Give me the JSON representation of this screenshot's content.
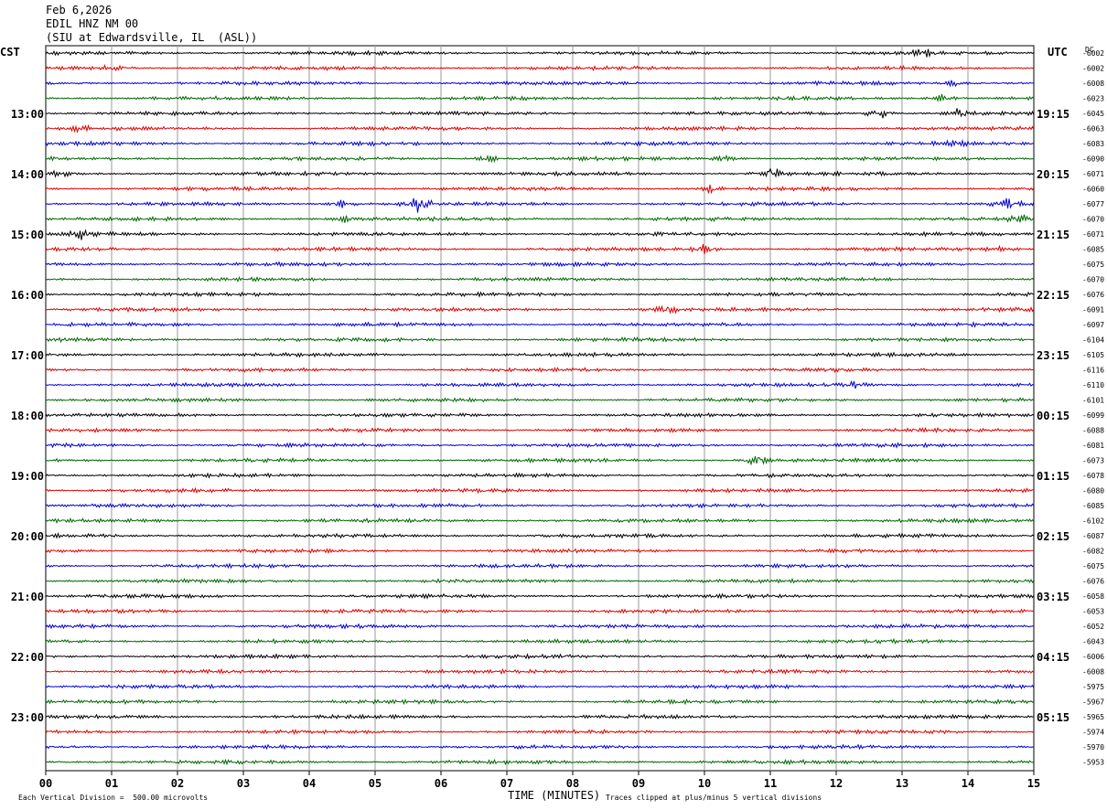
{
  "header": {
    "date": "Feb 6,2026",
    "channel": "EDIL HNZ NM 00",
    "station": "(SIU at Edwardsville, IL  (ASL))"
  },
  "left_label": "CST",
  "right_label": "UTC",
  "dc_label": "DC",
  "footer": {
    "scale_note": "Each Vertical Division =  500.00 microvolts",
    "clip_note": "Traces clipped at plus/minus 5 vertical divisions"
  },
  "colors": {
    "cycle": [
      "#000000",
      "#dd0000",
      "#0000cc",
      "#006600"
    ],
    "grid": "#9a9a9a"
  },
  "chart_data": {
    "type": "line",
    "subtype": "helicorder",
    "xlabel": "TIME (MINUTES)",
    "xlim": [
      0,
      15
    ],
    "x_ticks": [
      "00",
      "01",
      "02",
      "03",
      "04",
      "05",
      "06",
      "07",
      "08",
      "09",
      "10",
      "11",
      "12",
      "13",
      "14",
      "15"
    ],
    "left_time_labels": [
      "13:00",
      "14:00",
      "15:00",
      "16:00",
      "17:00",
      "18:00",
      "19:00",
      "20:00",
      "21:00",
      "22:00",
      "23:00"
    ],
    "right_time_labels": [
      "19:15",
      "20:15",
      "21:15",
      "22:15",
      "23:15",
      "00:15",
      "01:15",
      "02:15",
      "03:15",
      "04:15",
      "05:15"
    ],
    "dc_offsets": [
      "-6002",
      "-6002",
      "-6008",
      "-6023",
      "-6045",
      "-6063",
      "-6083",
      "-6090",
      "-6071",
      "-6060",
      "-6077",
      "-6070",
      "-6071",
      "-6085",
      "-6075",
      "-6070",
      "-6076",
      "-6091",
      "-6097",
      "-6104",
      "-6105",
      "-6116",
      "-6110",
      "-6101",
      "-6099",
      "-6088",
      "-6081",
      "-6073",
      "-6078",
      "-6080",
      "-6085",
      "-6102",
      "-6087",
      "-6082",
      "-6075",
      "-6076",
      "-6058",
      "-6053",
      "-6052",
      "-6043",
      "-6006",
      "-6008",
      "-5975",
      "-5967",
      "-5965",
      "-5974",
      "-5970",
      "-5953"
    ],
    "events": [
      {
        "trace": 0,
        "minute": 13.3,
        "amp": 2.0
      },
      {
        "trace": 1,
        "minute": 1.0,
        "amp": 1.5
      },
      {
        "trace": 2,
        "minute": 13.8,
        "amp": 1.5
      },
      {
        "trace": 3,
        "minute": 13.6,
        "amp": 2.0
      },
      {
        "trace": 4,
        "minute": 12.65,
        "amp": 3.0
      },
      {
        "trace": 4,
        "minute": 13.9,
        "amp": 3.0
      },
      {
        "trace": 5,
        "minute": 0.5,
        "amp": 1.5
      },
      {
        "trace": 6,
        "minute": 13.8,
        "amp": 1.5
      },
      {
        "trace": 7,
        "minute": 6.7,
        "amp": 2.0
      },
      {
        "trace": 7,
        "minute": 10.3,
        "amp": 1.5
      },
      {
        "trace": 8,
        "minute": 11.0,
        "amp": 4.0
      },
      {
        "trace": 8,
        "minute": 0.2,
        "amp": 1.5
      },
      {
        "trace": 9,
        "minute": 10.1,
        "amp": 2.0
      },
      {
        "trace": 10,
        "minute": 5.65,
        "amp": 4.0
      },
      {
        "trace": 10,
        "minute": 4.5,
        "amp": 2.0
      },
      {
        "trace": 10,
        "minute": 14.6,
        "amp": 2.0
      },
      {
        "trace": 11,
        "minute": 4.5,
        "amp": 2.0
      },
      {
        "trace": 11,
        "minute": 14.8,
        "amp": 2.0
      },
      {
        "trace": 12,
        "minute": 0.5,
        "amp": 2.5
      },
      {
        "trace": 13,
        "minute": 10.0,
        "amp": 2.0
      },
      {
        "trace": 13,
        "minute": 14.5,
        "amp": 2.0
      },
      {
        "trace": 17,
        "minute": 9.4,
        "amp": 3.0
      },
      {
        "trace": 22,
        "minute": 12.3,
        "amp": 1.5
      },
      {
        "trace": 27,
        "minute": 10.8,
        "amp": 3.0
      }
    ]
  }
}
